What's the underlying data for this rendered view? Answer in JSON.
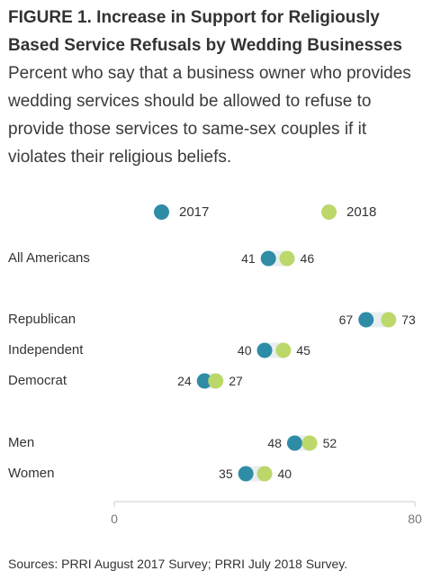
{
  "title": "FIGURE 1. Increase in Support for Religiously Based Service Refusals by Wedding Businesses",
  "subtitle": "Percent who say that a business owner who provides wedding services should be allowed to refuse to provide those services to same-sex couples if it violates their religious beliefs.",
  "source": "Sources: PRRI August 2017 Survey; PRRI July 2018 Survey.",
  "colors": {
    "y2017": "#2f8ca6",
    "y2018": "#bcd86a",
    "connector": "#e9eef0",
    "axis": "#cccccc"
  },
  "chart_data": {
    "type": "dot",
    "series": [
      {
        "name": "2017",
        "color": "#2f8ca6"
      },
      {
        "name": "2018",
        "color": "#bcd86a"
      }
    ],
    "categories": [
      "All Americans",
      "Republican",
      "Independent",
      "Democrat",
      "Men",
      "Women"
    ],
    "values_2017": [
      41,
      67,
      40,
      24,
      48,
      35
    ],
    "values_2018": [
      46,
      73,
      45,
      27,
      52,
      40
    ],
    "xlim": [
      0,
      80
    ],
    "tick_labels": [
      "0",
      "80"
    ]
  }
}
